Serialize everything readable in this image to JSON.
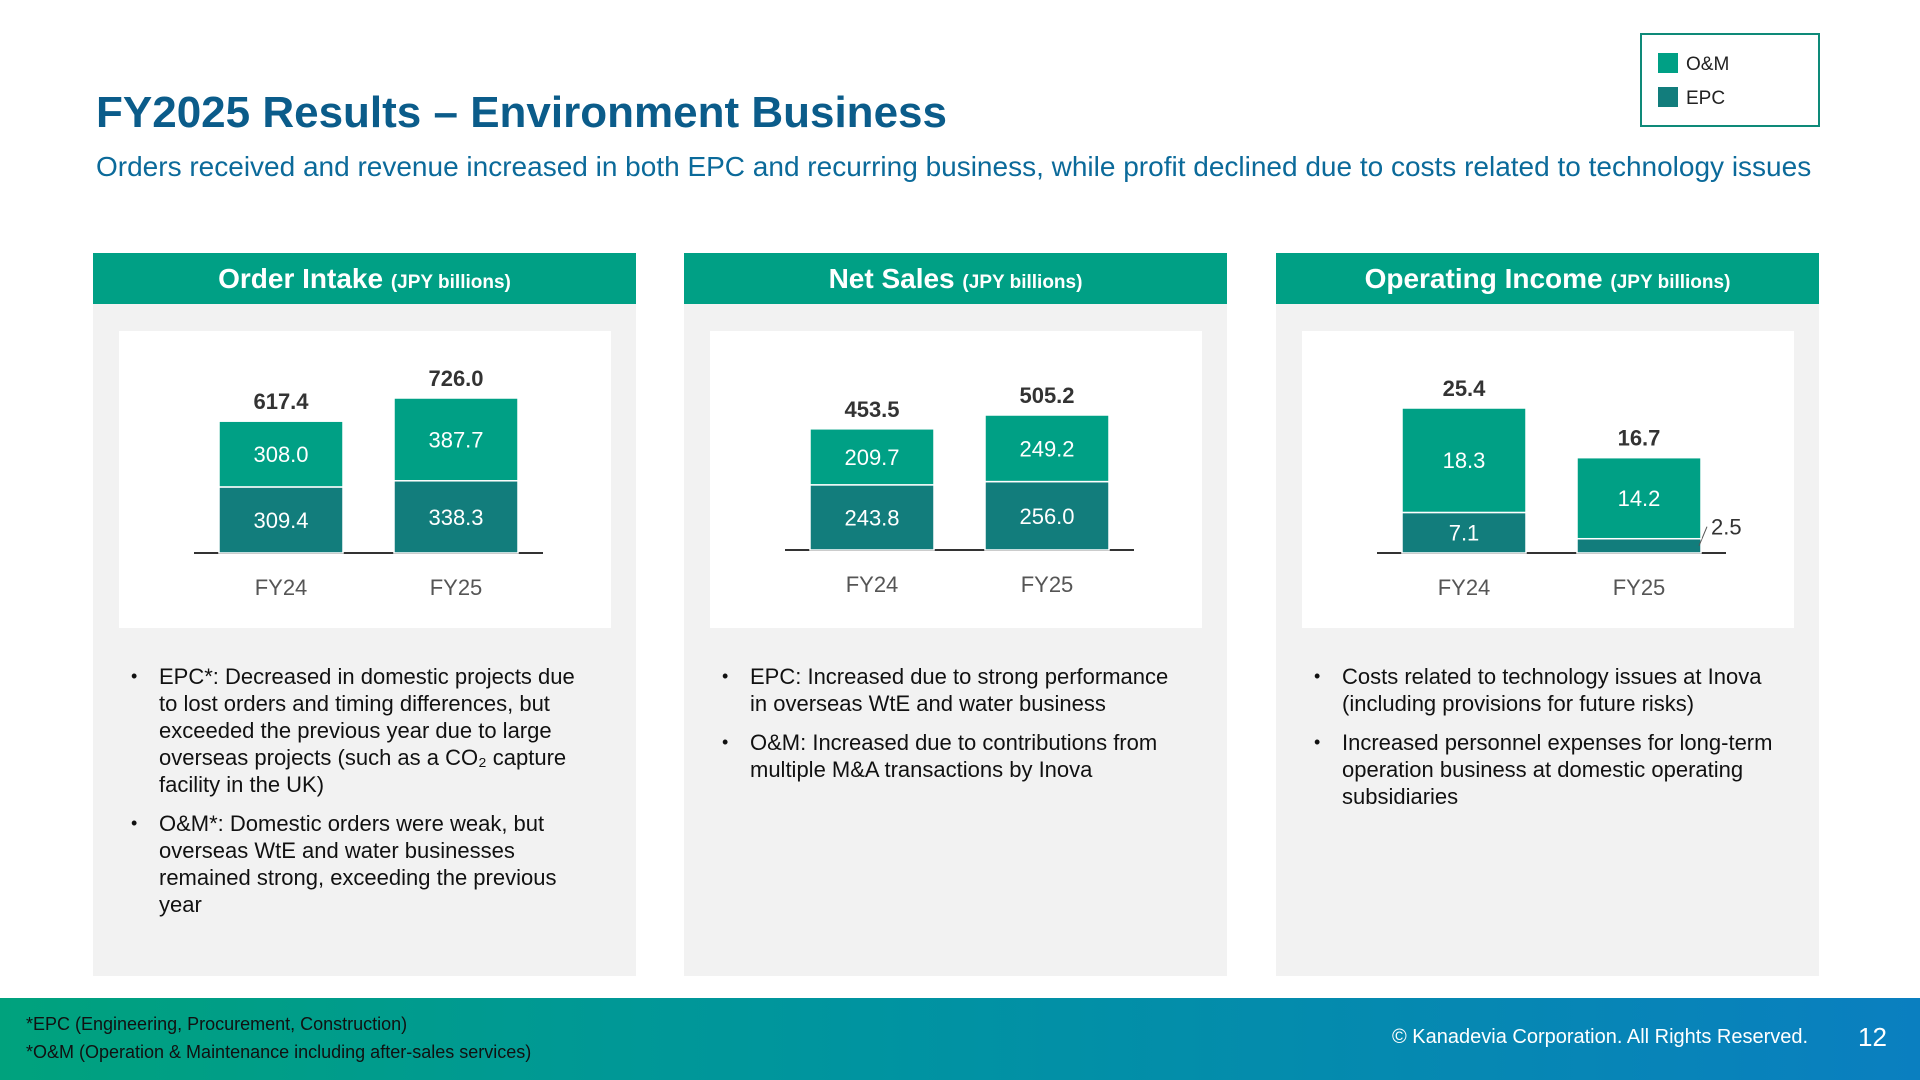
{
  "title": "FY2025 Results – Environment Business",
  "subtitle": "Orders received and revenue increased in both EPC and recurring business, while profit declined due to costs related to technology issues",
  "legend": [
    {
      "label": "O&M",
      "color": "#00a085"
    },
    {
      "label": "EPC",
      "color": "#127d7c"
    }
  ],
  "panels": [
    {
      "title": "Order Intake",
      "unit": "(JPY billions)"
    },
    {
      "title": "Net Sales",
      "unit": "(JPY billions)"
    },
    {
      "title": "Operating Income",
      "unit": "(JPY billions)"
    }
  ],
  "chart_data": [
    {
      "type": "bar",
      "stacked": true,
      "categories": [
        "FY24",
        "FY25"
      ],
      "series": [
        {
          "name": "EPC",
          "values": [
            309.4,
            338.3
          ]
        },
        {
          "name": "O&M",
          "values": [
            308.0,
            387.7
          ]
        }
      ],
      "totals": [
        "617.4",
        "726.0"
      ],
      "segment_labels": {
        "EPC": [
          "309.4",
          "338.3"
        ],
        "O&M": [
          "308.0",
          "387.7"
        ]
      }
    },
    {
      "type": "bar",
      "stacked": true,
      "categories": [
        "FY24",
        "FY25"
      ],
      "series": [
        {
          "name": "EPC",
          "values": [
            243.8,
            256.0
          ]
        },
        {
          "name": "O&M",
          "values": [
            209.7,
            249.2
          ]
        }
      ],
      "totals": [
        "453.5",
        "505.2"
      ],
      "segment_labels": {
        "EPC": [
          "243.8",
          "256.0"
        ],
        "O&M": [
          "209.7",
          "249.2"
        ]
      }
    },
    {
      "type": "bar",
      "stacked": true,
      "categories": [
        "FY24",
        "FY25"
      ],
      "series": [
        {
          "name": "EPC",
          "values": [
            7.1,
            2.5
          ]
        },
        {
          "name": "O&M",
          "values": [
            18.3,
            14.2
          ]
        }
      ],
      "totals": [
        "25.4",
        "16.7"
      ],
      "segment_labels": {
        "EPC": [
          "7.1",
          "2.5"
        ],
        "O&M": [
          "18.3",
          "14.2"
        ]
      }
    }
  ],
  "notes": [
    [
      "EPC*: Decreased in domestic projects due to lost orders and timing differences, but exceeded the previous year due to large overseas projects (such as a CO₂ capture facility in the UK)",
      "O&M*: Domestic orders were weak, but overseas WtE and water businesses remained strong, exceeding the previous year"
    ],
    [
      "EPC: Increased due to strong performance in overseas WtE and water business",
      "O&M: Increased due to contributions from multiple M&A transactions by Inova"
    ],
    [
      "Costs related to technology issues at Inova (including provisions for future risks)",
      "Increased personnel expenses for long-term operation business at domestic operating subsidiaries"
    ]
  ],
  "footer": {
    "footnotes": [
      "*EPC (Engineering, Procurement, Construction)",
      "*O&M (Operation & Maintenance including after-sales services)"
    ],
    "copyright": "© Kanadevia Corporation. All Rights Reserved.",
    "page_number": "12"
  }
}
